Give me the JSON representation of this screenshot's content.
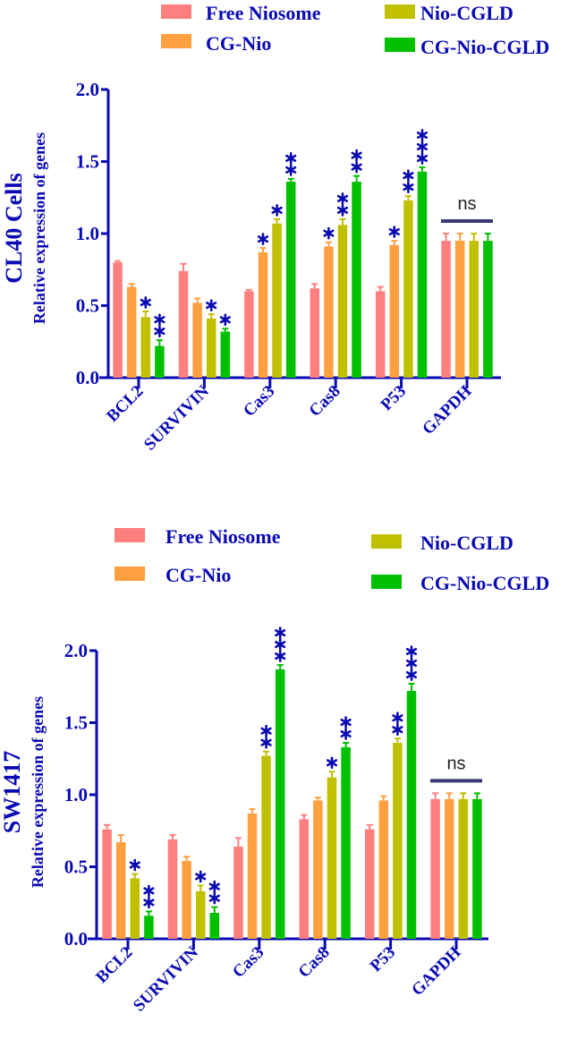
{
  "chart_data": [
    {
      "type": "bar",
      "title": "CL40 Cells",
      "ylabel": "Relative expression of genes",
      "xlabel": "",
      "ylim": [
        0,
        2.0
      ],
      "yticks": [
        "0.0",
        "0.5",
        "1.0",
        "1.5",
        "2.0"
      ],
      "grid": false,
      "legend_placement": "top",
      "categories": [
        "BCL2",
        "SURVIVIN",
        "Cas3",
        "Cas8",
        "P53",
        "GAPDH"
      ],
      "series": [
        {
          "name": "Free Niosome",
          "color": "#ff7f7f",
          "values": [
            0.8,
            0.74,
            0.6,
            0.62,
            0.6,
            0.95
          ],
          "errors": [
            0.01,
            0.05,
            0.01,
            0.03,
            0.03,
            0.05
          ],
          "sig": [
            "",
            "",
            "",
            "",
            "",
            ""
          ]
        },
        {
          "name": "CG-Nio",
          "color": "#ffa040",
          "values": [
            0.63,
            0.52,
            0.87,
            0.91,
            0.92,
            0.95
          ],
          "errors": [
            0.02,
            0.03,
            0.03,
            0.03,
            0.03,
            0.05
          ],
          "sig": [
            "",
            "",
            "*",
            "*",
            "*",
            ""
          ]
        },
        {
          "name": "Nio-CGLD",
          "color": "#c0c000",
          "values": [
            0.42,
            0.41,
            1.07,
            1.06,
            1.23,
            0.95
          ],
          "errors": [
            0.04,
            0.03,
            0.03,
            0.04,
            0.03,
            0.05
          ],
          "sig": [
            "*",
            "*",
            "*",
            "**",
            "**",
            ""
          ]
        },
        {
          "name": "CG-Nio-CGLD",
          "color": "#00c000",
          "values": [
            0.22,
            0.32,
            1.36,
            1.36,
            1.43,
            0.95
          ],
          "errors": [
            0.04,
            0.02,
            0.02,
            0.04,
            0.03,
            0.05
          ],
          "sig": [
            "**",
            "*",
            "**",
            "**",
            "***",
            ""
          ]
        }
      ],
      "annotation": "ns"
    },
    {
      "type": "bar",
      "title": "SW1417",
      "ylabel": "Relative expression of genes",
      "xlabel": "",
      "ylim": [
        0,
        2.0
      ],
      "yticks": [
        "0.0",
        "0.5",
        "1.0",
        "1.5",
        "2.0"
      ],
      "grid": false,
      "legend_placement": "top",
      "categories": [
        "BCL2",
        "SURVIVIN",
        "Cas3",
        "Cas8",
        "P53",
        "GAPDH"
      ],
      "series": [
        {
          "name": "Free Niosome",
          "color": "#ff7f7f",
          "values": [
            0.76,
            0.69,
            0.64,
            0.83,
            0.76,
            0.97
          ],
          "errors": [
            0.03,
            0.03,
            0.06,
            0.03,
            0.03,
            0.04
          ],
          "sig": [
            "",
            "",
            "",
            "",
            "",
            ""
          ]
        },
        {
          "name": "CG-Nio",
          "color": "#ffa040",
          "values": [
            0.67,
            0.54,
            0.87,
            0.96,
            0.96,
            0.97
          ],
          "errors": [
            0.05,
            0.03,
            0.03,
            0.02,
            0.03,
            0.04
          ],
          "sig": [
            "",
            "",
            "",
            "",
            "",
            ""
          ]
        },
        {
          "name": "Nio-CGLD",
          "color": "#c0c000",
          "values": [
            0.42,
            0.33,
            1.27,
            1.12,
            1.36,
            0.97
          ],
          "errors": [
            0.03,
            0.04,
            0.03,
            0.04,
            0.03,
            0.04
          ],
          "sig": [
            "*",
            "*",
            "**",
            "*",
            "**",
            ""
          ]
        },
        {
          "name": "CG-Nio-CGLD",
          "color": "#00c000",
          "values": [
            0.16,
            0.18,
            1.87,
            1.33,
            1.72,
            0.97
          ],
          "errors": [
            0.03,
            0.04,
            0.03,
            0.03,
            0.05,
            0.04
          ],
          "sig": [
            "**",
            "**",
            "***",
            "**",
            "***",
            ""
          ]
        }
      ],
      "annotation": "ns"
    }
  ]
}
